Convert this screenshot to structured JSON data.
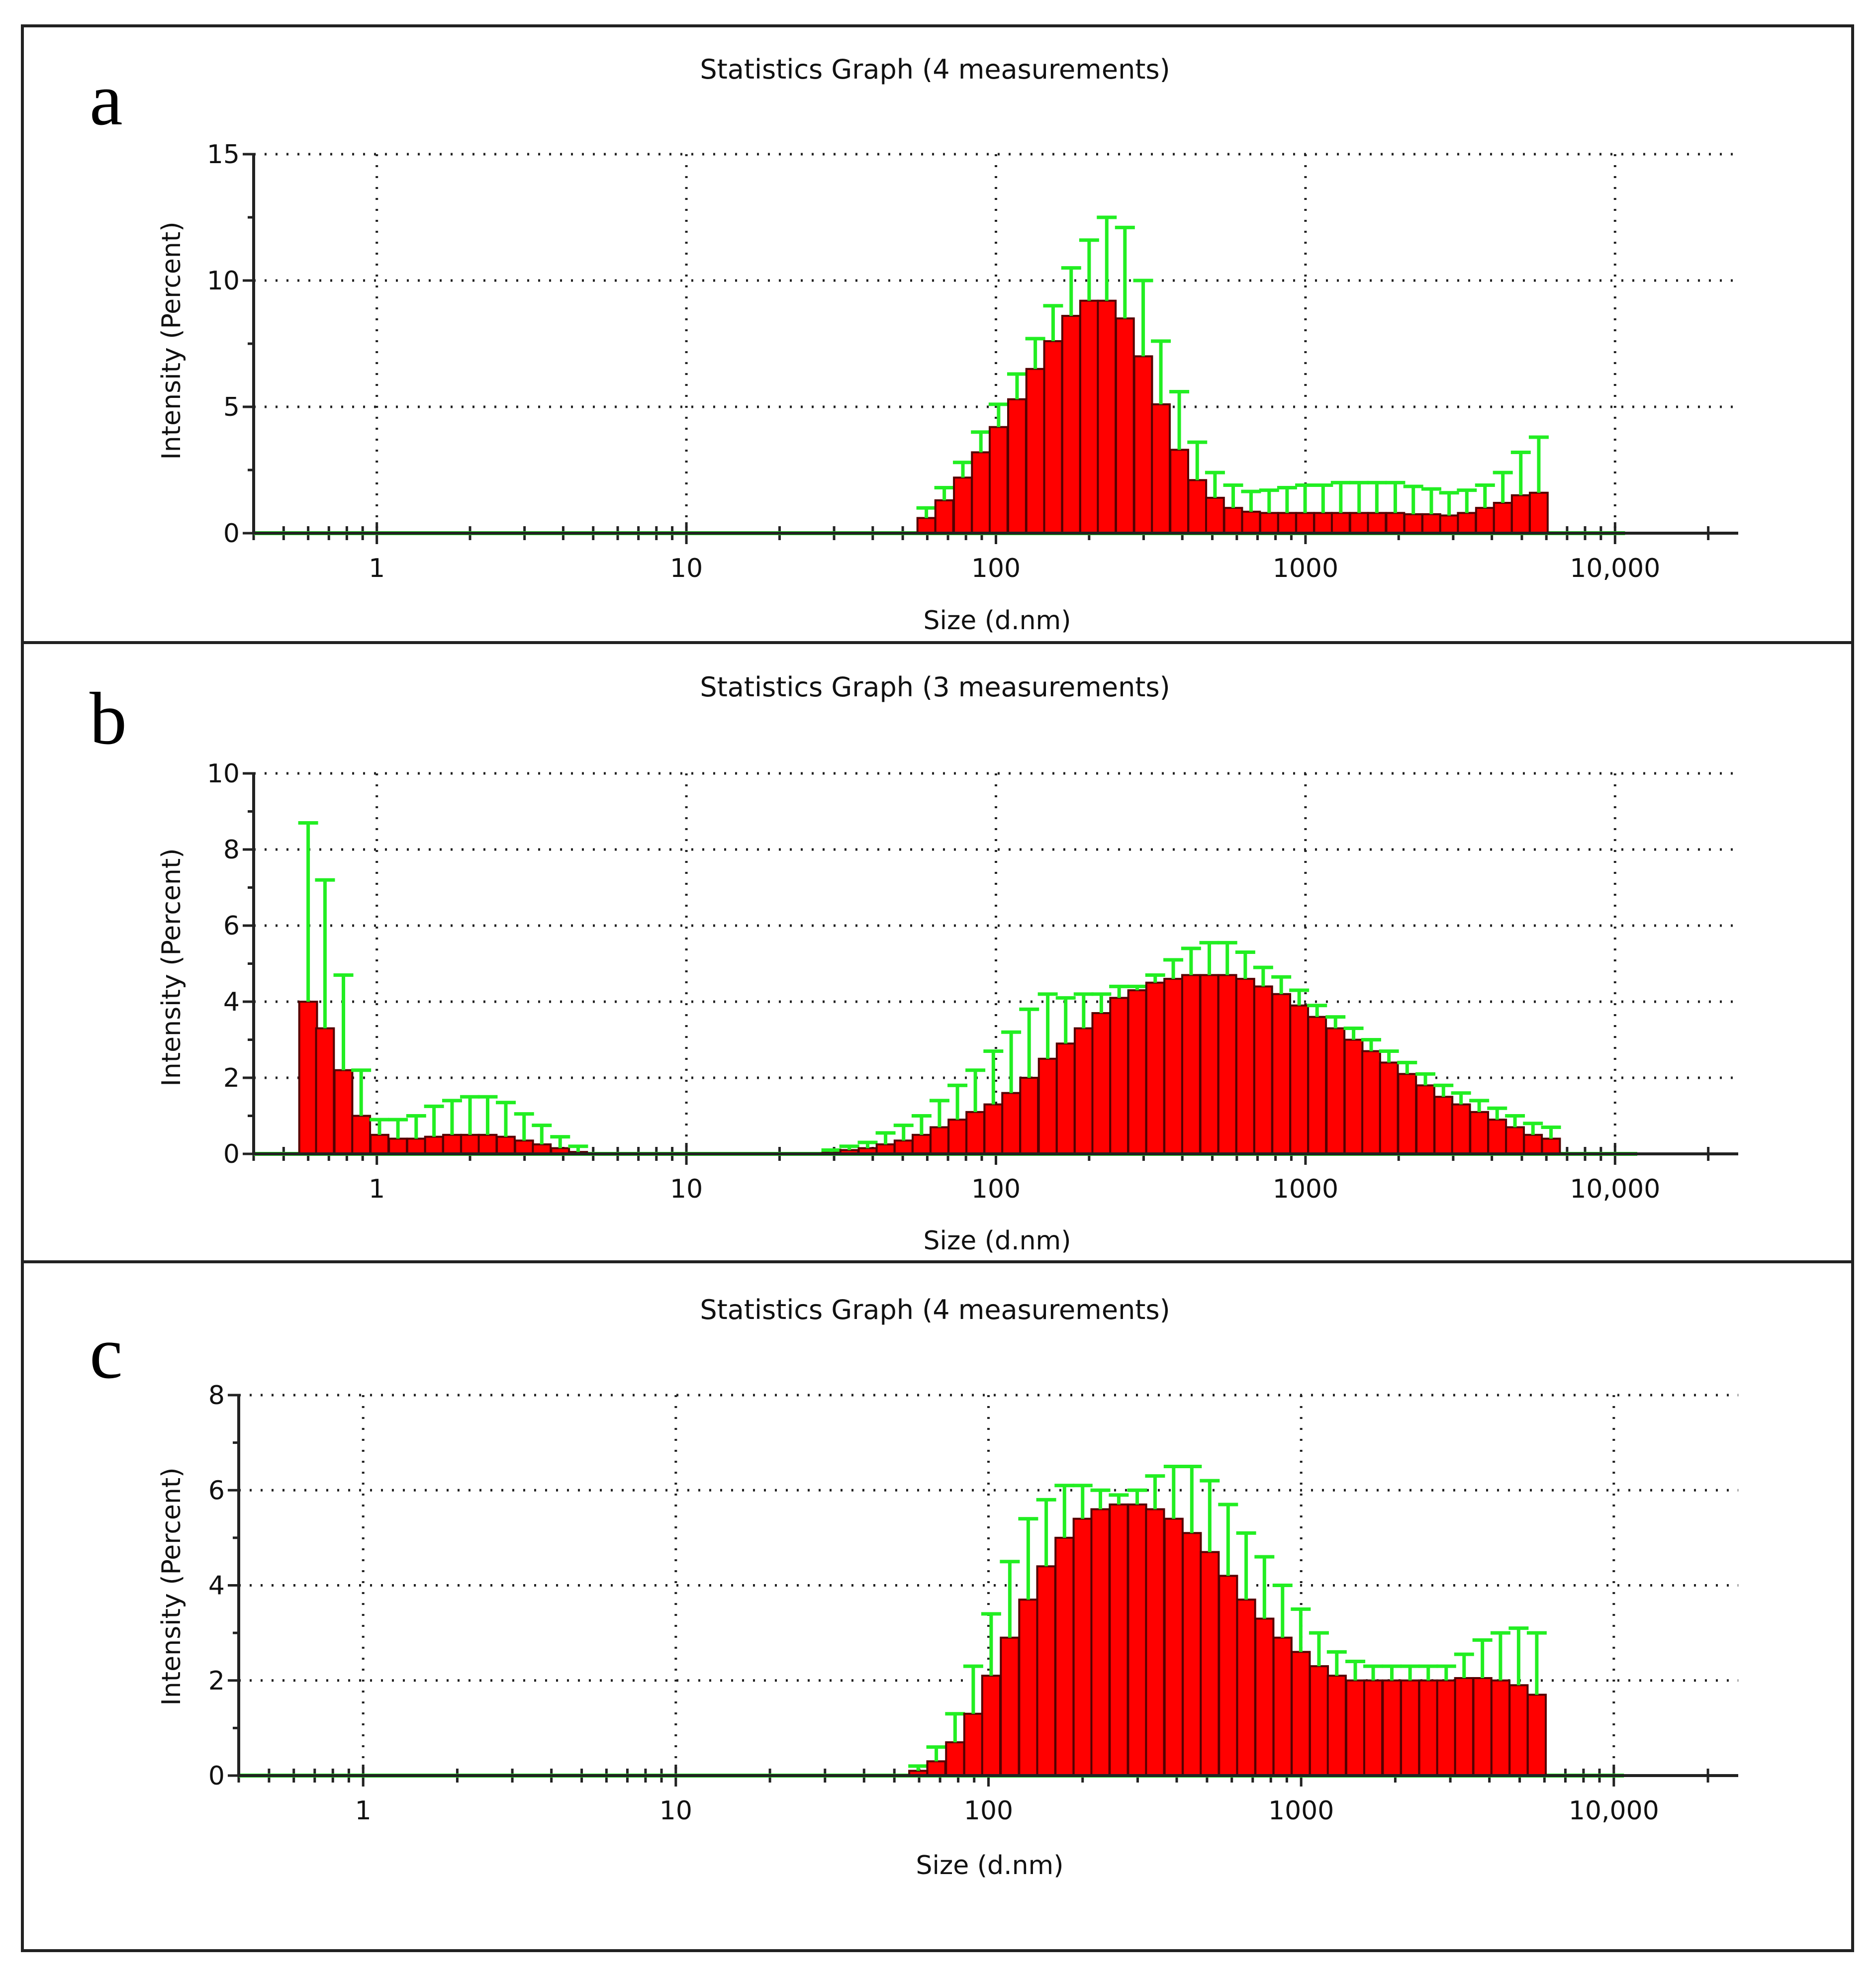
{
  "figure": {
    "description": "Three DLS size-distribution statistics graphs",
    "colors": {
      "bar": "#ff0000",
      "bar_edge": "#550000",
      "error_bar": "#22ee22",
      "axis": "#222222"
    }
  },
  "chart_data": [
    {
      "type": "bar",
      "panel_letter": "a",
      "title": "Statistics Graph (4 measurements)",
      "xlabel": "Size (d.nm)",
      "ylabel": "Intensity (Percent)",
      "xscale": "log",
      "xlim": [
        0.4,
        25000
      ],
      "ylim": [
        0,
        15
      ],
      "yticks": [
        0,
        5,
        10,
        15
      ],
      "ytick_labels": [
        "0",
        "5",
        "10",
        "15"
      ],
      "xticks": [
        1,
        10,
        100,
        1000,
        10000
      ],
      "xtick_labels": [
        "1",
        "10",
        "100",
        "1000",
        "10,000"
      ],
      "grid": true,
      "data_start_size": 0.4,
      "bar_width_log10": 0.0575,
      "bars": [
        {
          "x": 59.6,
          "y": 0.6,
          "err": 0.4
        },
        {
          "x": 68.1,
          "y": 1.3,
          "err": 0.5
        },
        {
          "x": 78.2,
          "y": 2.2,
          "err": 0.6
        },
        {
          "x": 89.4,
          "y": 3.2,
          "err": 0.8
        },
        {
          "x": 102,
          "y": 4.2,
          "err": 0.9
        },
        {
          "x": 117,
          "y": 5.3,
          "err": 1.0
        },
        {
          "x": 134,
          "y": 6.5,
          "err": 1.2
        },
        {
          "x": 153,
          "y": 7.6,
          "err": 1.4
        },
        {
          "x": 175,
          "y": 8.6,
          "err": 1.9
        },
        {
          "x": 200,
          "y": 9.2,
          "err": 2.4
        },
        {
          "x": 228,
          "y": 9.2,
          "err": 3.3
        },
        {
          "x": 261,
          "y": 8.5,
          "err": 3.6
        },
        {
          "x": 299,
          "y": 7.0,
          "err": 3.0
        },
        {
          "x": 341,
          "y": 5.1,
          "err": 2.5
        },
        {
          "x": 391,
          "y": 3.3,
          "err": 2.3
        },
        {
          "x": 447,
          "y": 2.1,
          "err": 1.5
        },
        {
          "x": 510,
          "y": 1.4,
          "err": 1.0
        },
        {
          "x": 584,
          "y": 1.0,
          "err": 0.9
        },
        {
          "x": 667,
          "y": 0.85,
          "err": 0.8
        },
        {
          "x": 763,
          "y": 0.8,
          "err": 0.9
        },
        {
          "x": 872,
          "y": 0.8,
          "err": 1.0
        },
        {
          "x": 997,
          "y": 0.8,
          "err": 1.1
        },
        {
          "x": 1140,
          "y": 0.8,
          "err": 1.1
        },
        {
          "x": 1300,
          "y": 0.8,
          "err": 1.2
        },
        {
          "x": 1490,
          "y": 0.8,
          "err": 1.2
        },
        {
          "x": 1700,
          "y": 0.8,
          "err": 1.2
        },
        {
          "x": 1950,
          "y": 0.8,
          "err": 1.2
        },
        {
          "x": 2230,
          "y": 0.75,
          "err": 1.1
        },
        {
          "x": 2550,
          "y": 0.75,
          "err": 1.0
        },
        {
          "x": 2910,
          "y": 0.7,
          "err": 0.9
        },
        {
          "x": 3320,
          "y": 0.8,
          "err": 0.9
        },
        {
          "x": 3800,
          "y": 1.0,
          "err": 0.9
        },
        {
          "x": 4340,
          "y": 1.2,
          "err": 1.2
        },
        {
          "x": 4960,
          "y": 1.5,
          "err": 1.7
        },
        {
          "x": 5670,
          "y": 1.6,
          "err": 2.2
        }
      ]
    },
    {
      "type": "bar",
      "panel_letter": "b",
      "title": "Statistics Graph (3 measurements)",
      "xlabel": "Size (d.nm)",
      "ylabel": "Intensity (Percent)",
      "xscale": "log",
      "xlim": [
        0.4,
        25000
      ],
      "ylim": [
        0,
        10
      ],
      "yticks": [
        0,
        2,
        4,
        6,
        8,
        10
      ],
      "ytick_labels": [
        "0",
        "2",
        "4",
        "6",
        "8",
        "10"
      ],
      "xticks": [
        1,
        10,
        100,
        1000,
        10000
      ],
      "xtick_labels": [
        "1",
        "10",
        "100",
        "1000",
        "10,000"
      ],
      "grid": true,
      "data_start_size": 0.4,
      "bar_width_log10": 0.0575,
      "bars": [
        {
          "x": 0.6,
          "y": 4.0,
          "err": 4.7
        },
        {
          "x": 0.68,
          "y": 3.3,
          "err": 3.9
        },
        {
          "x": 0.78,
          "y": 2.2,
          "err": 2.5
        },
        {
          "x": 0.89,
          "y": 1.0,
          "err": 1.2
        },
        {
          "x": 1.02,
          "y": 0.5,
          "err": 0.4
        },
        {
          "x": 1.17,
          "y": 0.4,
          "err": 0.5
        },
        {
          "x": 1.34,
          "y": 0.4,
          "err": 0.6
        },
        {
          "x": 1.53,
          "y": 0.45,
          "err": 0.8
        },
        {
          "x": 1.75,
          "y": 0.5,
          "err": 0.9
        },
        {
          "x": 2.0,
          "y": 0.5,
          "err": 1.0
        },
        {
          "x": 2.28,
          "y": 0.5,
          "err": 1.0
        },
        {
          "x": 2.61,
          "y": 0.45,
          "err": 0.9
        },
        {
          "x": 2.99,
          "y": 0.35,
          "err": 0.7
        },
        {
          "x": 3.41,
          "y": 0.25,
          "err": 0.5
        },
        {
          "x": 3.91,
          "y": 0.15,
          "err": 0.3
        },
        {
          "x": 4.47,
          "y": 0.05,
          "err": 0.15
        },
        {
          "x": 29.4,
          "y": 0.05,
          "err": 0.05
        },
        {
          "x": 33.6,
          "y": 0.1,
          "err": 0.1
        },
        {
          "x": 38.5,
          "y": 0.15,
          "err": 0.15
        },
        {
          "x": 44.0,
          "y": 0.25,
          "err": 0.3
        },
        {
          "x": 50.3,
          "y": 0.35,
          "err": 0.4
        },
        {
          "x": 57.5,
          "y": 0.5,
          "err": 0.5
        },
        {
          "x": 65.7,
          "y": 0.7,
          "err": 0.7
        },
        {
          "x": 75.1,
          "y": 0.9,
          "err": 0.9
        },
        {
          "x": 85.8,
          "y": 1.1,
          "err": 1.1
        },
        {
          "x": 98.1,
          "y": 1.3,
          "err": 1.4
        },
        {
          "x": 112,
          "y": 1.6,
          "err": 1.6
        },
        {
          "x": 128,
          "y": 2.0,
          "err": 1.8
        },
        {
          "x": 147,
          "y": 2.5,
          "err": 1.7
        },
        {
          "x": 168,
          "y": 2.9,
          "err": 1.2
        },
        {
          "x": 192,
          "y": 3.3,
          "err": 0.9
        },
        {
          "x": 219,
          "y": 3.7,
          "err": 0.5
        },
        {
          "x": 250,
          "y": 4.1,
          "err": 0.3
        },
        {
          "x": 286,
          "y": 4.3,
          "err": 0.1
        },
        {
          "x": 327,
          "y": 4.5,
          "err": 0.2
        },
        {
          "x": 374,
          "y": 4.6,
          "err": 0.5
        },
        {
          "x": 427,
          "y": 4.7,
          "err": 0.7
        },
        {
          "x": 489,
          "y": 4.7,
          "err": 0.85
        },
        {
          "x": 559,
          "y": 4.7,
          "err": 0.85
        },
        {
          "x": 639,
          "y": 4.6,
          "err": 0.7
        },
        {
          "x": 730,
          "y": 4.4,
          "err": 0.5
        },
        {
          "x": 835,
          "y": 4.2,
          "err": 0.45
        },
        {
          "x": 954,
          "y": 3.9,
          "err": 0.4
        },
        {
          "x": 1090,
          "y": 3.6,
          "err": 0.3
        },
        {
          "x": 1250,
          "y": 3.3,
          "err": 0.3
        },
        {
          "x": 1430,
          "y": 3.0,
          "err": 0.3
        },
        {
          "x": 1630,
          "y": 2.7,
          "err": 0.3
        },
        {
          "x": 1860,
          "y": 2.4,
          "err": 0.3
        },
        {
          "x": 2130,
          "y": 2.1,
          "err": 0.3
        },
        {
          "x": 2440,
          "y": 1.8,
          "err": 0.3
        },
        {
          "x": 2790,
          "y": 1.5,
          "err": 0.3
        },
        {
          "x": 3180,
          "y": 1.3,
          "err": 0.3
        },
        {
          "x": 3640,
          "y": 1.1,
          "err": 0.3
        },
        {
          "x": 4160,
          "y": 0.9,
          "err": 0.3
        },
        {
          "x": 4750,
          "y": 0.7,
          "err": 0.3
        },
        {
          "x": 5430,
          "y": 0.5,
          "err": 0.3
        },
        {
          "x": 6210,
          "y": 0.4,
          "err": 0.3
        }
      ]
    },
    {
      "type": "bar",
      "panel_letter": "c",
      "title": "Statistics Graph (4 measurements)",
      "xlabel": "Size (d.nm)",
      "ylabel": "Intensity (Percent)",
      "xscale": "log",
      "xlim": [
        0.4,
        25000
      ],
      "ylim": [
        0,
        8
      ],
      "yticks": [
        0,
        2,
        4,
        6,
        8
      ],
      "ytick_labels": [
        "0",
        "2",
        "4",
        "6",
        "8"
      ],
      "xticks": [
        1,
        10,
        100,
        1000,
        10000
      ],
      "xtick_labels": [
        "1",
        "10",
        "100",
        "1000",
        "10,000"
      ],
      "grid": true,
      "data_start_size": 0.4,
      "bar_width_log10": 0.0575,
      "bars": [
        {
          "x": 59.6,
          "y": 0.1,
          "err": 0.1
        },
        {
          "x": 68.1,
          "y": 0.3,
          "err": 0.3
        },
        {
          "x": 78.2,
          "y": 0.7,
          "err": 0.6
        },
        {
          "x": 89.4,
          "y": 1.3,
          "err": 1.0
        },
        {
          "x": 102,
          "y": 2.1,
          "err": 1.3
        },
        {
          "x": 117,
          "y": 2.9,
          "err": 1.6
        },
        {
          "x": 134,
          "y": 3.7,
          "err": 1.7
        },
        {
          "x": 153,
          "y": 4.4,
          "err": 1.4
        },
        {
          "x": 175,
          "y": 5.0,
          "err": 1.1
        },
        {
          "x": 200,
          "y": 5.4,
          "err": 0.7
        },
        {
          "x": 228,
          "y": 5.6,
          "err": 0.4
        },
        {
          "x": 261,
          "y": 5.7,
          "err": 0.2
        },
        {
          "x": 299,
          "y": 5.7,
          "err": 0.3
        },
        {
          "x": 341,
          "y": 5.6,
          "err": 0.7
        },
        {
          "x": 391,
          "y": 5.4,
          "err": 1.1
        },
        {
          "x": 447,
          "y": 5.1,
          "err": 1.4
        },
        {
          "x": 510,
          "y": 4.7,
          "err": 1.5
        },
        {
          "x": 584,
          "y": 4.2,
          "err": 1.5
        },
        {
          "x": 667,
          "y": 3.7,
          "err": 1.4
        },
        {
          "x": 763,
          "y": 3.3,
          "err": 1.3
        },
        {
          "x": 872,
          "y": 2.9,
          "err": 1.1
        },
        {
          "x": 997,
          "y": 2.6,
          "err": 0.9
        },
        {
          "x": 1140,
          "y": 2.3,
          "err": 0.7
        },
        {
          "x": 1300,
          "y": 2.1,
          "err": 0.5
        },
        {
          "x": 1490,
          "y": 2.0,
          "err": 0.4
        },
        {
          "x": 1700,
          "y": 2.0,
          "err": 0.3
        },
        {
          "x": 1950,
          "y": 2.0,
          "err": 0.3
        },
        {
          "x": 2230,
          "y": 2.0,
          "err": 0.3
        },
        {
          "x": 2550,
          "y": 2.0,
          "err": 0.3
        },
        {
          "x": 2910,
          "y": 2.0,
          "err": 0.3
        },
        {
          "x": 3320,
          "y": 2.05,
          "err": 0.5
        },
        {
          "x": 3800,
          "y": 2.05,
          "err": 0.8
        },
        {
          "x": 4340,
          "y": 2.0,
          "err": 1.0
        },
        {
          "x": 4960,
          "y": 1.9,
          "err": 1.2
        },
        {
          "x": 5670,
          "y": 1.7,
          "err": 1.3
        }
      ]
    }
  ]
}
